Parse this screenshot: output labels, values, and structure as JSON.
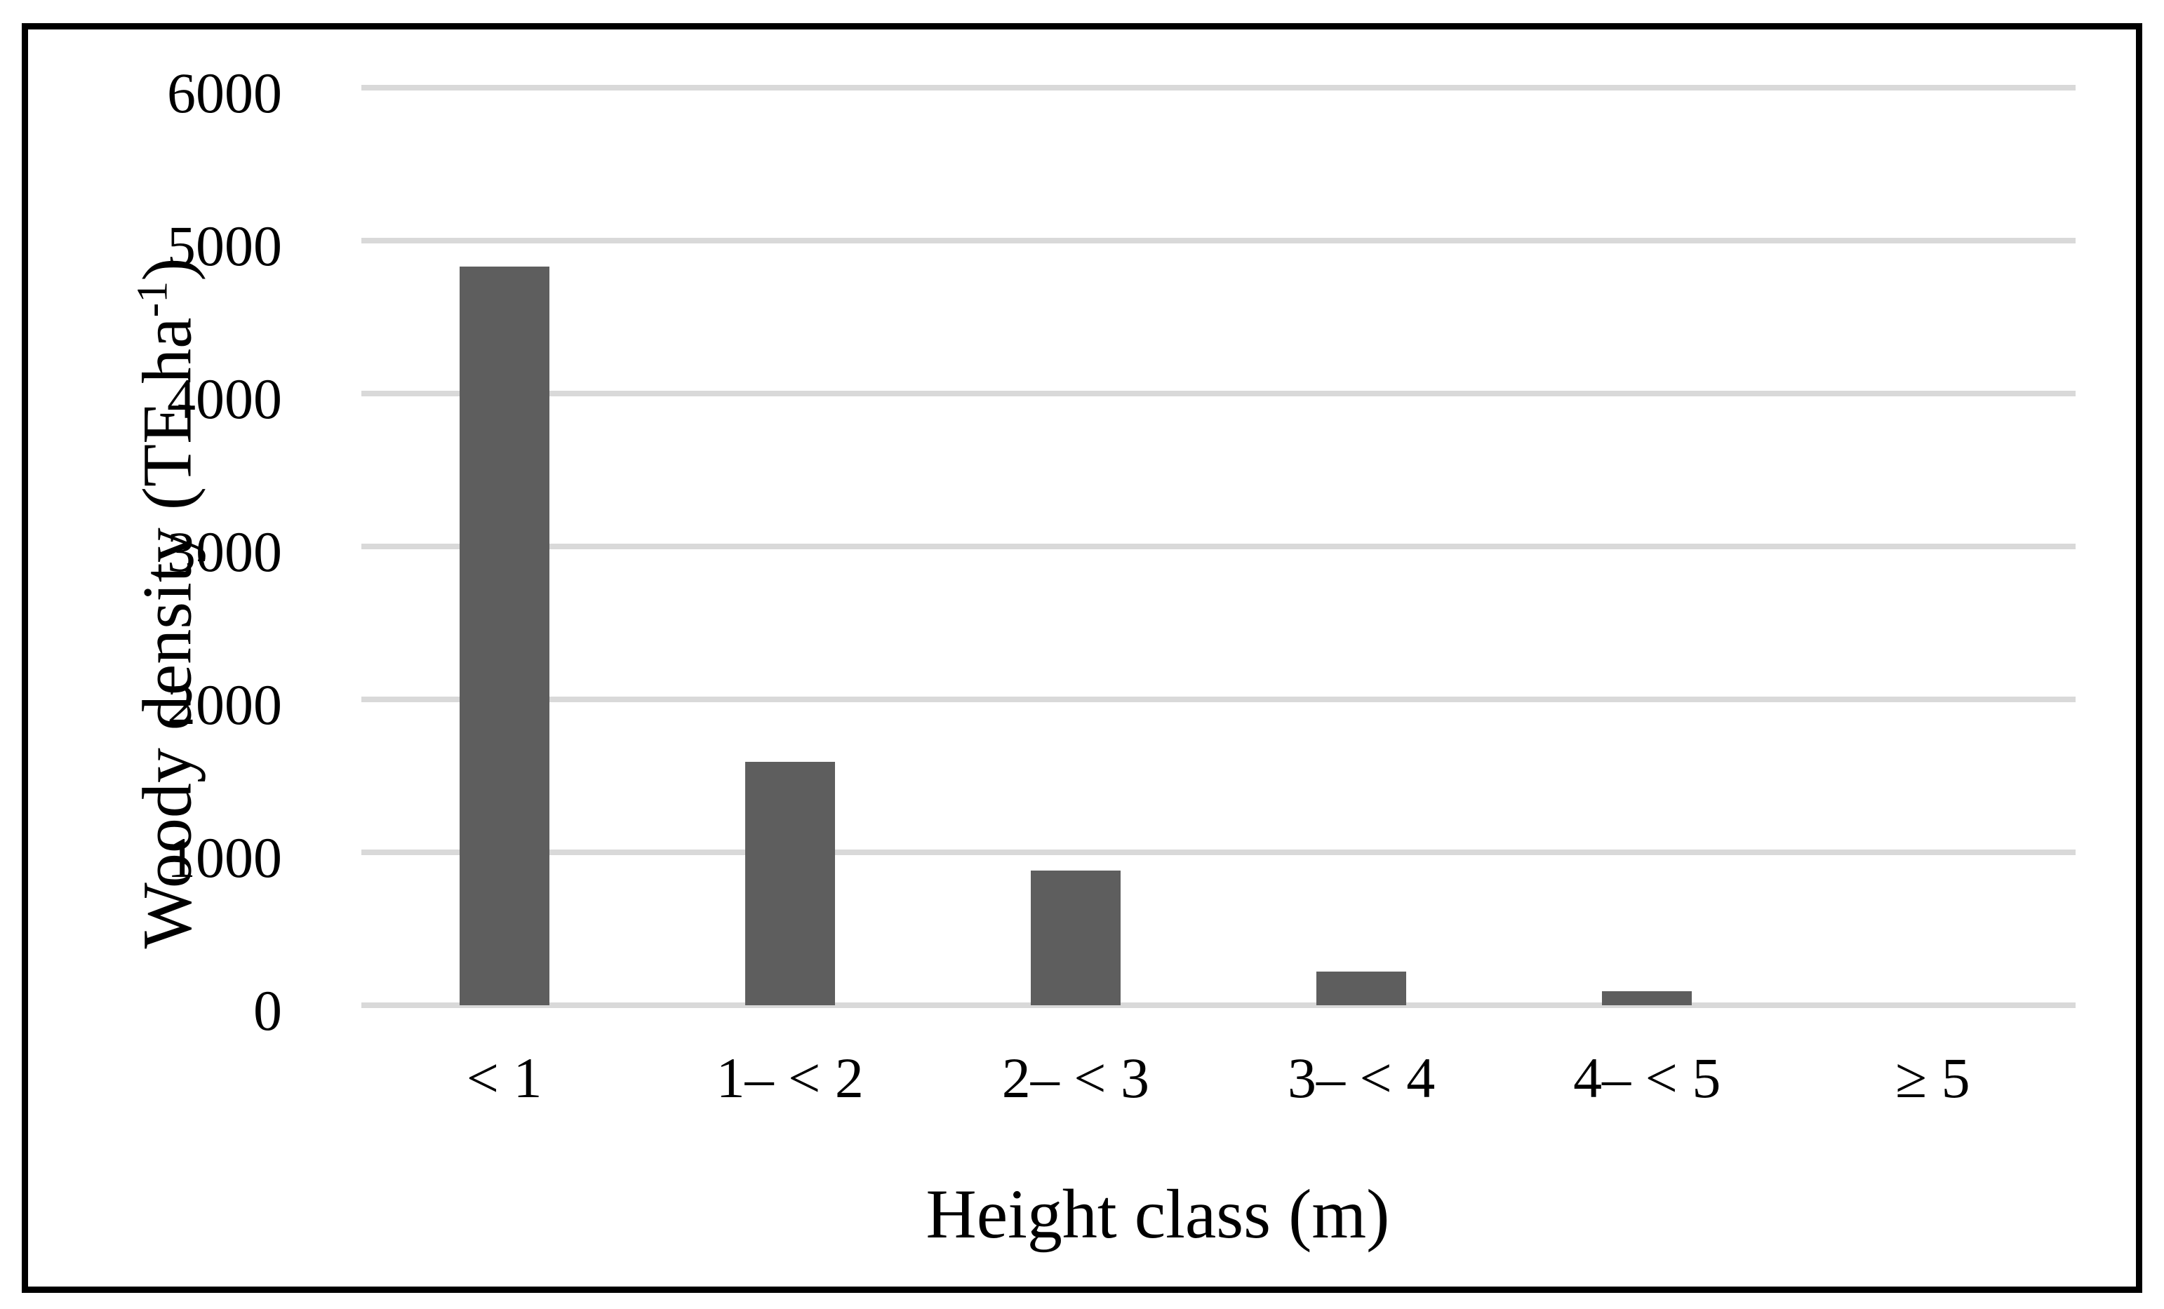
{
  "figure": {
    "background_color": "#ffffff",
    "border_color": "#000000"
  },
  "chart_data": {
    "type": "bar",
    "title": "",
    "categories": [
      "< 1",
      "1– < 2",
      "2– < 3",
      "3– < 4",
      "4– < 5",
      "≥ 5"
    ],
    "values": [
      4830,
      1590,
      880,
      220,
      90,
      0
    ],
    "xlabel": "Height class (m)",
    "ylabel": "Woody density (TE ha⁻¹)",
    "ylabel_parts": {
      "prefix": "Woody density (TE ha",
      "superscript": "-1",
      "suffix": ")"
    },
    "ylim": [
      0,
      6000
    ],
    "ytick_interval": 1000,
    "yticks": [
      "0",
      "1000",
      "2000",
      "3000",
      "4000",
      "5000",
      "6000"
    ],
    "grid": "horizontal-only",
    "legend_position": "none",
    "bar_color": "#5e5e5e",
    "gridline_color": "#d9d9d9"
  }
}
